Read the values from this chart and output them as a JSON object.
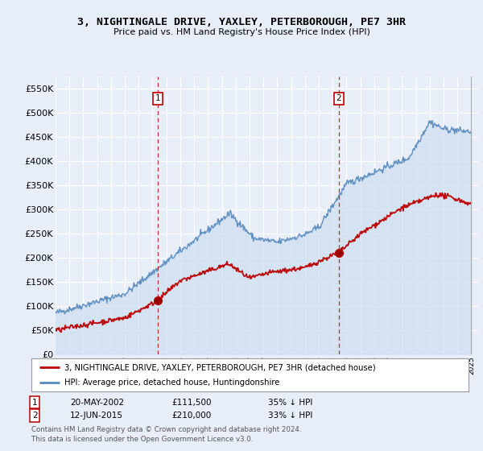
{
  "title": "3, NIGHTINGALE DRIVE, YAXLEY, PETERBOROUGH, PE7 3HR",
  "subtitle": "Price paid vs. HM Land Registry's House Price Index (HPI)",
  "red_label": "3, NIGHTINGALE DRIVE, YAXLEY, PETERBOROUGH, PE7 3HR (detached house)",
  "blue_label": "HPI: Average price, detached house, Huntingdonshire",
  "annotation1_date": "20-MAY-2002",
  "annotation1_price": "£111,500",
  "annotation1_hpi": "35% ↓ HPI",
  "annotation2_date": "12-JUN-2015",
  "annotation2_price": "£210,000",
  "annotation2_hpi": "33% ↓ HPI",
  "point1_year": 2002.38,
  "point1_value": 111500,
  "point2_year": 2015.44,
  "point2_value": 210000,
  "footer1": "Contains HM Land Registry data © Crown copyright and database right 2024.",
  "footer2": "This data is licensed under the Open Government Licence v3.0.",
  "yticks": [
    0,
    50000,
    100000,
    150000,
    200000,
    250000,
    300000,
    350000,
    400000,
    450000,
    500000,
    550000
  ],
  "ytick_labels": [
    "£0",
    "£50K",
    "£100K",
    "£150K",
    "£200K",
    "£250K",
    "£300K",
    "£350K",
    "£400K",
    "£450K",
    "£500K",
    "£550K"
  ],
  "background_color": "#e8eef8",
  "grid_color": "#ffffff",
  "red_color": "#bb0000",
  "blue_color": "#5588bb",
  "fill_color": "#ccddf0"
}
